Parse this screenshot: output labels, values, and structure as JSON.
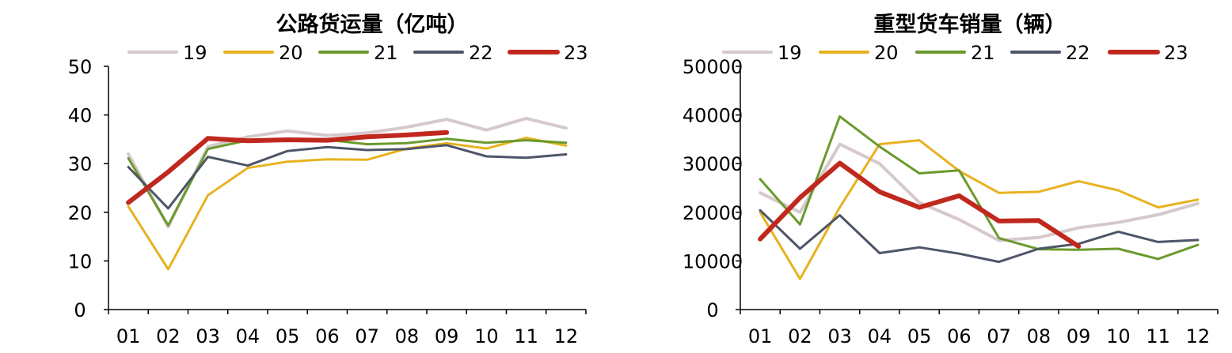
{
  "chart_data": [
    {
      "type": "line",
      "title": "公路货运量（亿吨）",
      "categories": [
        "01",
        "02",
        "03",
        "04",
        "05",
        "06",
        "07",
        "08",
        "09",
        "10",
        "11",
        "12"
      ],
      "ylim": [
        0,
        50
      ],
      "yticks": [
        "0",
        "10",
        "20",
        "30",
        "40",
        "50"
      ],
      "grid": false,
      "legend_position": "top",
      "series": [
        {
          "name": "19",
          "color": "#d6c9cb",
          "width": 4,
          "values": [
            32.0,
            17.0,
            33.5,
            35.5,
            36.7,
            35.8,
            36.3,
            37.5,
            39.1,
            36.9,
            39.3,
            37.3
          ]
        },
        {
          "name": "20",
          "color": "#e8b21f",
          "width": 3,
          "values": [
            21.2,
            8.3,
            23.5,
            29.1,
            30.4,
            30.9,
            30.8,
            33.1,
            34.2,
            33.1,
            35.3,
            33.7
          ]
        },
        {
          "name": "21",
          "color": "#6a9a2e",
          "width": 3,
          "values": [
            31.1,
            17.3,
            33.0,
            34.8,
            35.1,
            34.9,
            34.0,
            34.2,
            35.1,
            34.3,
            34.8,
            34.3
          ]
        },
        {
          "name": "22",
          "color": "#4e5568",
          "width": 3,
          "values": [
            29.3,
            20.8,
            31.4,
            29.6,
            32.6,
            33.4,
            32.8,
            33.0,
            33.8,
            31.5,
            31.2,
            31.9
          ]
        },
        {
          "name": "23",
          "color": "#c0281e",
          "width": 6,
          "values": [
            22.0,
            28.3,
            35.2,
            34.7,
            34.9,
            34.8,
            35.5,
            35.9,
            36.4,
            null,
            null,
            null
          ]
        }
      ]
    },
    {
      "type": "line",
      "title": "重型货车销量（辆）",
      "categories": [
        "01",
        "02",
        "03",
        "04",
        "05",
        "06",
        "07",
        "08",
        "09",
        "10",
        "11",
        "12"
      ],
      "ylim": [
        0,
        50000
      ],
      "yticks": [
        "0",
        "10000",
        "20000",
        "30000",
        "40000",
        "50000"
      ],
      "grid": false,
      "legend_position": "top",
      "series": [
        {
          "name": "19",
          "color": "#d6c9cb",
          "width": 4,
          "values": [
            24000,
            20000,
            34000,
            30000,
            22000,
            18500,
            14200,
            14800,
            16800,
            17900,
            19500,
            21800
          ]
        },
        {
          "name": "20",
          "color": "#e8b21f",
          "width": 3,
          "values": [
            20000,
            6300,
            21000,
            34000,
            34800,
            28500,
            24000,
            24200,
            26400,
            24500,
            21000,
            22600
          ]
        },
        {
          "name": "21",
          "color": "#6a9a2e",
          "width": 3,
          "values": [
            26800,
            17500,
            39700,
            33500,
            28000,
            28600,
            14700,
            12400,
            12300,
            12500,
            10400,
            13300
          ]
        },
        {
          "name": "22",
          "color": "#4e5568",
          "width": 3,
          "values": [
            20400,
            12500,
            19400,
            11600,
            12800,
            11500,
            9800,
            12500,
            13500,
            16000,
            13900,
            14300
          ]
        },
        {
          "name": "23",
          "color": "#c0281e",
          "width": 6,
          "values": [
            14500,
            23000,
            30100,
            24200,
            21000,
            23400,
            18200,
            18300,
            13000,
            null,
            null,
            null
          ]
        }
      ]
    }
  ]
}
